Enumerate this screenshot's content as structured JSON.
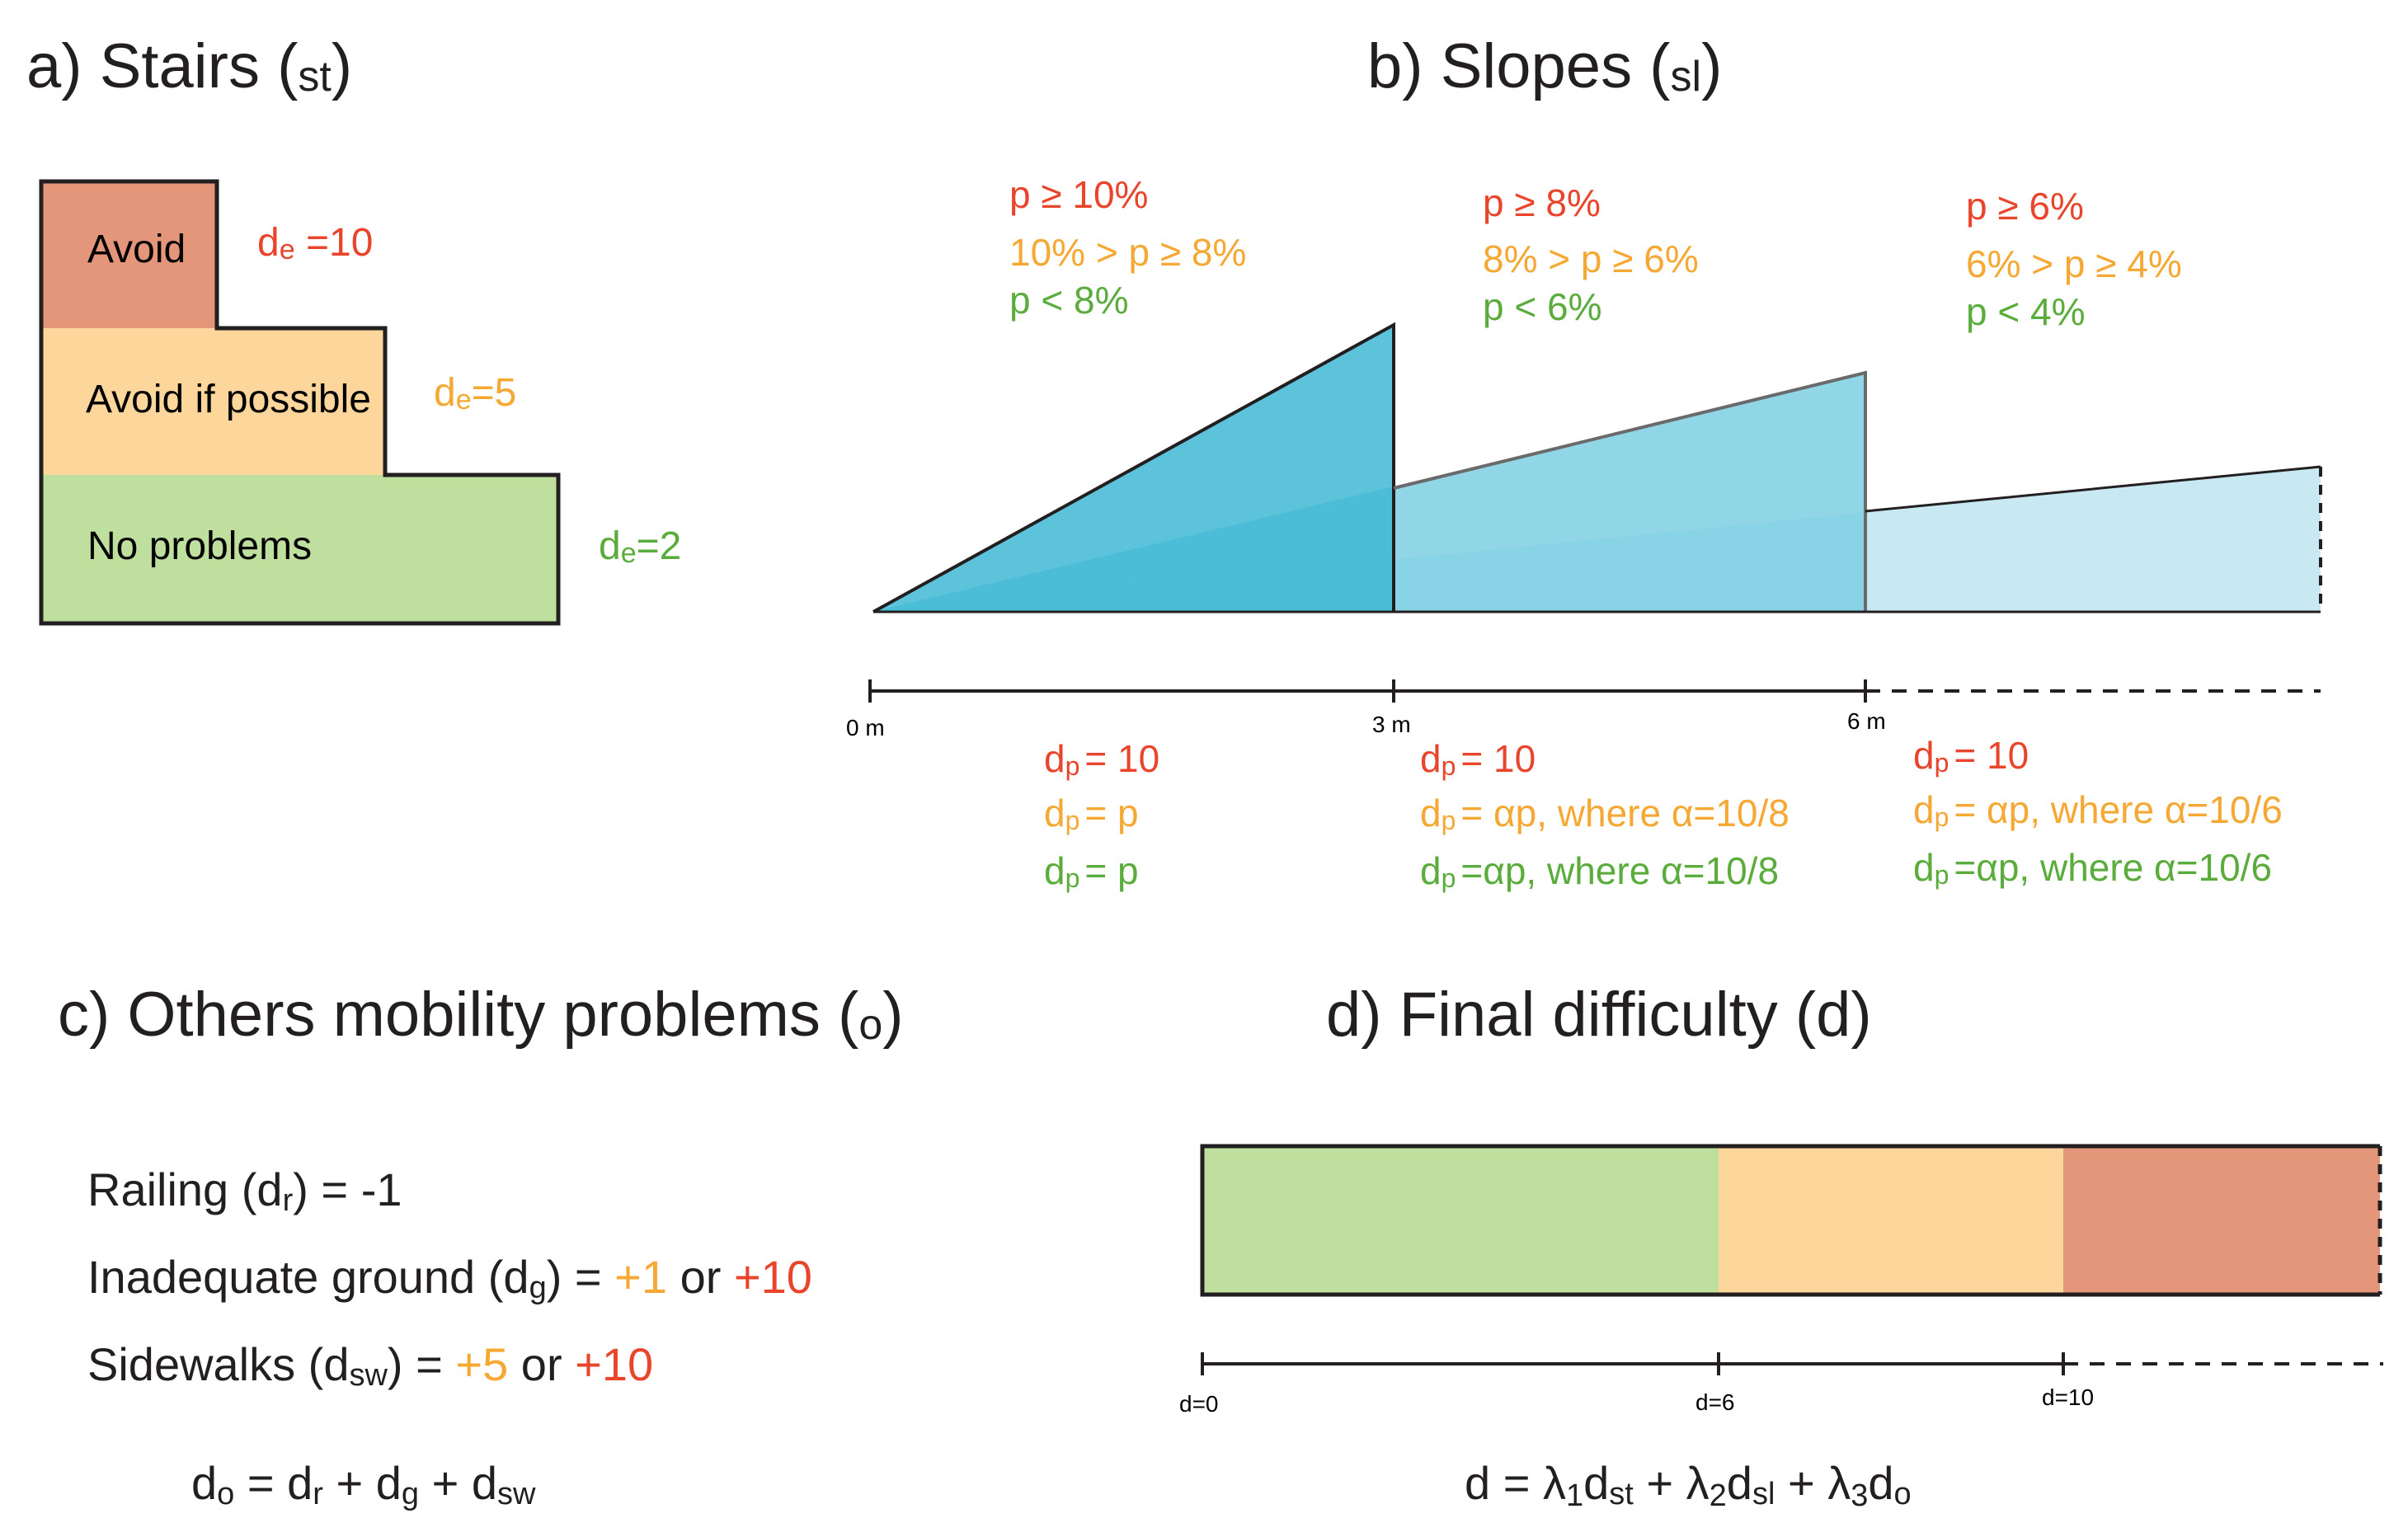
{
  "colors": {
    "red": "#e8452c",
    "orange": "#f5a833",
    "green": "#5aac3c",
    "dark": "#231f20",
    "box_red": "#e4967a",
    "box_orange": "#fdd69c",
    "box_green": "#bfdf9e",
    "slope_1": "#3fb9d3",
    "slope_2": "#7ccfe3",
    "slope_3": "#c5e7f1"
  },
  "panel_a": {
    "title": "a) Stairs (",
    "title_sub": "st",
    "title_close": ")",
    "levels": [
      {
        "label": "Avoid",
        "d_main": "d",
        "d_sub": "e",
        "d_rest": " =10",
        "color": "red"
      },
      {
        "label": "Avoid if possible",
        "d_main": "d",
        "d_sub": "e",
        "d_rest": "=5",
        "color": "orange"
      },
      {
        "label": "No problems",
        "d_main": "d",
        "d_sub": "e",
        "d_rest": "=2",
        "color": "green"
      }
    ]
  },
  "panel_b": {
    "title": "b) Slopes (",
    "title_sub": "sl",
    "title_close": ")",
    "segments": [
      {
        "cond_red": "p ≥ 10%",
        "cond_orange": "10% > p  ≥ 8%",
        "cond_green": "p  < 8%",
        "d_red": "= 10",
        "d_orange": "= p",
        "d_green": "= p"
      },
      {
        "cond_red": "p ≥ 8%",
        "cond_orange": "8% > p  ≥ 6%",
        "cond_green": "p  < 6%",
        "d_red": "= 10",
        "d_orange": "= αp,  where α=10/8",
        "d_green": "=αp,  where α=10/8"
      },
      {
        "cond_red": "p ≥ 6%",
        "cond_orange": "6% > p  ≥ 4%",
        "cond_green": "p  < 4%",
        "d_red": "= 10",
        "d_orange": "= αp,  where α=10/6",
        "d_green": "=αp,  where α=10/6"
      }
    ],
    "d_main": "d",
    "d_sub": "p",
    "ticks": [
      "0 m",
      "3 m",
      "6 m"
    ]
  },
  "panel_c": {
    "title": "c) Others mobility problems (",
    "title_sub": "o",
    "title_close": ")",
    "railing": {
      "pre": "Railing (d",
      "sub": "r",
      "post": ") = -1"
    },
    "ground": {
      "pre": "Inadequate ground (d",
      "sub": "g",
      "post": ") = ",
      "v1": "+1",
      "or": " or ",
      "v2": "+10"
    },
    "sidewalks": {
      "pre": "Sidewalks (d",
      "sub": "sw",
      "post": ") = ",
      "v1": "+5",
      "or": " or ",
      "v2": "+10"
    },
    "formula": {
      "d": "d",
      "s_o": "o",
      "eq": " = d",
      "s_r": "r",
      "p1": " + d",
      "s_g": "g",
      "p2": " + d",
      "s_sw": "sw"
    }
  },
  "panel_d": {
    "title": "d) Final difficulty (d)",
    "ticks": [
      "d=0",
      "d=6",
      "d=10"
    ],
    "formula": {
      "pre": "d = λ",
      "n1": "1",
      "a": "d",
      "s1": "st",
      "p1": " + λ",
      "n2": "2",
      "b": "d",
      "s2": "sl",
      "p2": " + λ",
      "n3": "3",
      "c": "d",
      "s3": "o"
    }
  }
}
